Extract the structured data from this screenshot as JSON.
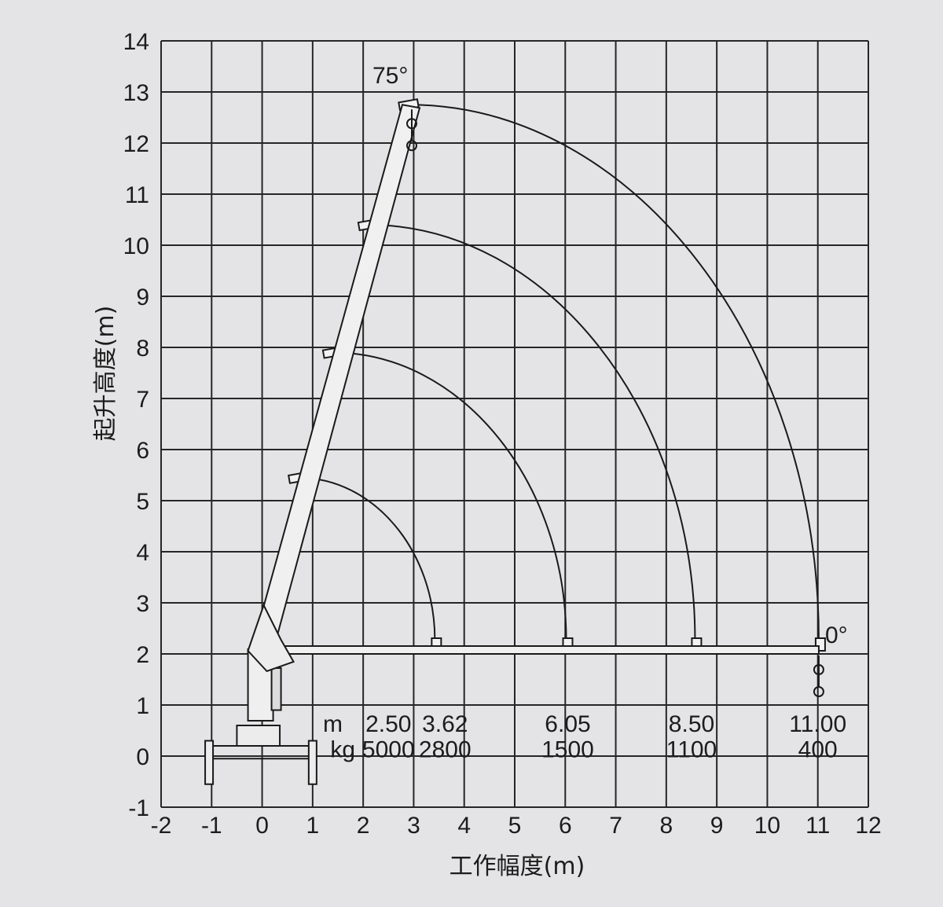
{
  "chart_data": {
    "type": "line",
    "xlabel": "工作幅度(m)",
    "ylabel": "起升高度(m)",
    "xlim": [
      -2,
      12
    ],
    "ylim": [
      -1,
      14
    ],
    "x_ticks": [
      "-2",
      "-1",
      "0",
      "1",
      "2",
      "3",
      "4",
      "5",
      "6",
      "7",
      "8",
      "9",
      "10",
      "11",
      "12"
    ],
    "y_ticks": [
      "-1",
      "0",
      "1",
      "2",
      "3",
      "4",
      "5",
      "6",
      "7",
      "8",
      "9",
      "10",
      "11",
      "12",
      "13",
      "14"
    ],
    "grid": true,
    "boom_pivot": [
      0.0,
      2.0
    ],
    "boom_angles_deg": {
      "max": 75,
      "min": 0
    },
    "angle_labels": [
      "75°",
      "0°"
    ],
    "series": [
      {
        "boom_length": 3.45,
        "tip_75deg": [
          0.72,
          5.45
        ],
        "tip_0deg": [
          3.45,
          2.0
        ]
      },
      {
        "boom_length": 6.05,
        "tip_75deg": [
          1.4,
          7.9
        ],
        "tip_0deg": [
          6.05,
          2.0
        ]
      },
      {
        "boom_length": 8.6,
        "tip_75deg": [
          2.1,
          10.4
        ],
        "tip_0deg": [
          8.6,
          2.0
        ]
      },
      {
        "boom_length": 11.05,
        "tip_75deg": [
          2.9,
          12.75
        ],
        "tip_0deg": [
          11.05,
          2.0
        ]
      }
    ],
    "load_table": {
      "radius_label": "m",
      "load_label": "kg",
      "radius_m": [
        "2.50",
        "3.62",
        "6.05",
        "8.50",
        "11.00"
      ],
      "load_kg": [
        "5000",
        "2800",
        "1500",
        "1100",
        "400"
      ]
    }
  }
}
